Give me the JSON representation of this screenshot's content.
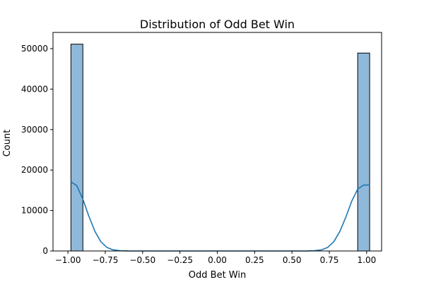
{
  "chart_data": {
    "type": "bar",
    "title": "Distribution of Odd Bet Win",
    "xlabel": "Odd Bet Win",
    "ylabel": "Count",
    "xlim": [
      -1.1,
      1.1
    ],
    "ylim": [
      0,
      54000
    ],
    "x_ticks": [
      -1.0,
      -0.75,
      -0.5,
      -0.25,
      0.0,
      0.25,
      0.5,
      0.75,
      1.0
    ],
    "x_tick_labels": [
      "−1.00",
      "−0.75",
      "−0.50",
      "−0.25",
      "0.00",
      "0.25",
      "0.50",
      "0.75",
      "1.00"
    ],
    "y_ticks": [
      0,
      10000,
      20000,
      30000,
      40000,
      50000
    ],
    "y_tick_labels": [
      "0",
      "10000",
      "20000",
      "30000",
      "40000",
      "50000"
    ],
    "bins": [
      {
        "x0": -0.98,
        "x1": -0.9,
        "count": 51100
      },
      {
        "x0": 0.94,
        "x1": 1.02,
        "count": 48900
      }
    ],
    "kde": {
      "x": [
        -0.98,
        -0.94,
        -0.9,
        -0.86,
        -0.82,
        -0.78,
        -0.74,
        -0.7,
        -0.65,
        -0.6,
        -0.5,
        -0.4,
        -0.3,
        -0.2,
        -0.1,
        0.0,
        0.1,
        0.2,
        0.3,
        0.4,
        0.5,
        0.6,
        0.65,
        0.7,
        0.74,
        0.78,
        0.82,
        0.86,
        0.9,
        0.94,
        0.98,
        1.02
      ],
      "y": [
        17100,
        16100,
        12800,
        8600,
        4900,
        2300,
        900,
        300,
        80,
        20,
        0,
        0,
        0,
        0,
        0,
        0,
        0,
        0,
        0,
        0,
        0,
        20,
        80,
        300,
        900,
        2300,
        4800,
        8300,
        12300,
        15300,
        16300,
        16300
      ]
    },
    "grid": false,
    "legend": "none",
    "colors": {
      "bar_fill": "#8fb9da",
      "bar_edge": "#000000",
      "kde_line": "#1f77b4",
      "axis": "#000000"
    }
  }
}
